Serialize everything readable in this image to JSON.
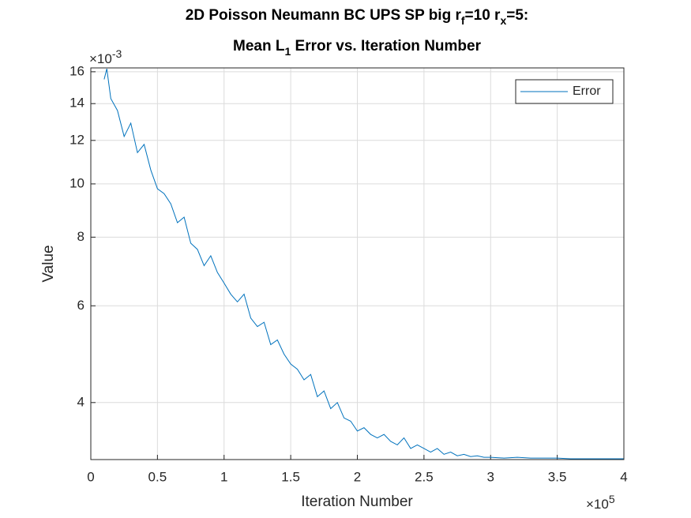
{
  "chart_data": {
    "type": "line",
    "title_line1": [
      "2D Poisson Neumann BC UPS SP big r",
      "f",
      "=10 r",
      "x",
      "=5:"
    ],
    "title_line2": [
      "Mean L",
      "1",
      " Error vs. Iteration Number"
    ],
    "xlabel": "Iteration Number",
    "ylabel": "Value",
    "x_exponent": [
      "×10",
      "5"
    ],
    "y_exponent": [
      "×10",
      "-3"
    ],
    "log_y": true,
    "grid": true,
    "legend_position": "northeast",
    "xlim": [
      0,
      4
    ],
    "xticks": [
      0,
      0.5,
      1,
      1.5,
      2,
      2.5,
      3,
      3.5,
      4
    ],
    "ylim": [
      3.15,
      16.26
    ],
    "yticks": [
      4,
      6,
      8,
      10,
      12,
      14,
      16
    ],
    "x": [
      0.1,
      0.12,
      0.15,
      0.2,
      0.25,
      0.3,
      0.35,
      0.4,
      0.45,
      0.5,
      0.55,
      0.6,
      0.65,
      0.7,
      0.75,
      0.8,
      0.85,
      0.9,
      0.95,
      1.0,
      1.05,
      1.1,
      1.15,
      1.2,
      1.25,
      1.3,
      1.35,
      1.4,
      1.45,
      1.5,
      1.55,
      1.6,
      1.65,
      1.7,
      1.75,
      1.8,
      1.85,
      1.9,
      1.95,
      2.0,
      2.05,
      2.1,
      2.15,
      2.2,
      2.25,
      2.3,
      2.35,
      2.4,
      2.45,
      2.5,
      2.55,
      2.6,
      2.65,
      2.7,
      2.75,
      2.8,
      2.85,
      2.9,
      2.95,
      3.0,
      3.1,
      3.2,
      3.3,
      3.4,
      3.5,
      3.6,
      3.7,
      3.8,
      3.9,
      4.0
    ],
    "series": [
      {
        "name": "Error",
        "color": "#0072bd",
        "values": [
          15.5,
          16.2,
          14.3,
          13.6,
          12.2,
          12.9,
          11.4,
          11.8,
          10.6,
          9.8,
          9.6,
          9.2,
          8.5,
          8.7,
          7.8,
          7.6,
          7.1,
          7.4,
          6.9,
          6.6,
          6.3,
          6.1,
          6.3,
          5.7,
          5.5,
          5.6,
          5.1,
          5.2,
          4.9,
          4.7,
          4.6,
          4.4,
          4.5,
          4.1,
          4.2,
          3.9,
          4.0,
          3.75,
          3.7,
          3.55,
          3.6,
          3.5,
          3.45,
          3.5,
          3.4,
          3.35,
          3.45,
          3.3,
          3.35,
          3.3,
          3.25,
          3.3,
          3.22,
          3.25,
          3.2,
          3.22,
          3.19,
          3.2,
          3.18,
          3.18,
          3.17,
          3.18,
          3.17,
          3.17,
          3.17,
          3.16,
          3.16,
          3.16,
          3.16,
          3.16
        ]
      }
    ]
  }
}
